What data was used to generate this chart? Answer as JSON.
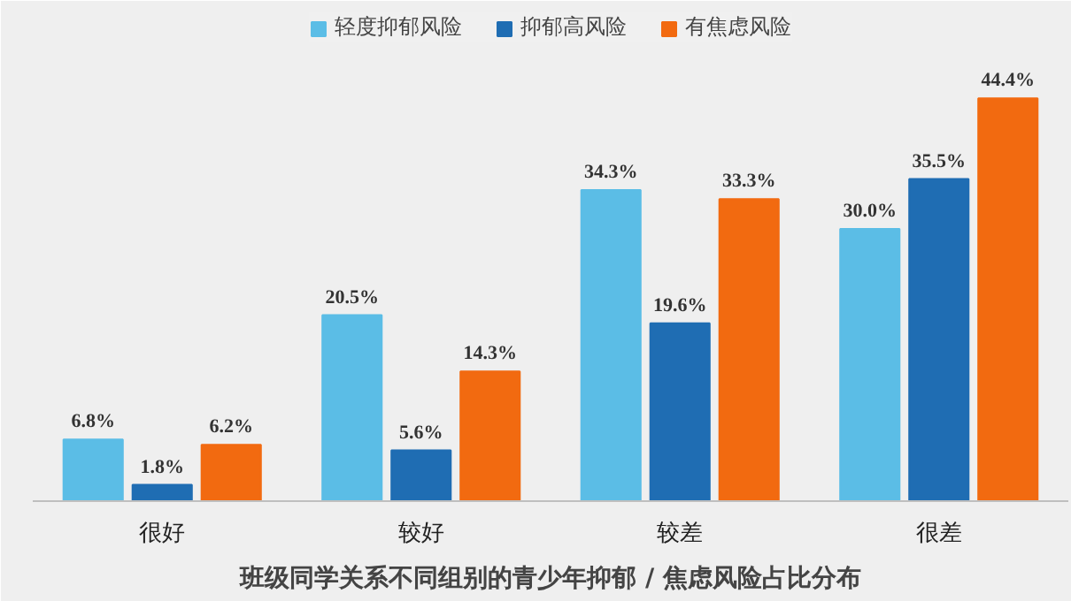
{
  "chart_data": {
    "type": "bar",
    "title": "班级同学关系不同组别的青少年抑郁 / 焦虑风险占比分布",
    "categories": [
      "很好",
      "较好",
      "较差",
      "很差"
    ],
    "legend": "top",
    "series": [
      {
        "name": "轻度抑郁风险",
        "color": "#5bbde6",
        "values": [
          6.8,
          20.5,
          34.3,
          30.0
        ],
        "value_labels": [
          "6.8%",
          "20.5%",
          "34.3%",
          "30.0%"
        ]
      },
      {
        "name": "抑郁高风险",
        "color": "#1f6db3",
        "values": [
          1.8,
          5.6,
          19.6,
          35.5
        ],
        "value_labels": [
          "1.8%",
          "5.6%",
          "19.6%",
          "35.5%"
        ]
      },
      {
        "name": "有焦虑风险",
        "color": "#f26a10",
        "values": [
          6.2,
          14.3,
          33.3,
          44.4
        ],
        "value_labels": [
          "6.2%",
          "14.3%",
          "33.3%",
          "44.4%"
        ]
      }
    ]
  }
}
